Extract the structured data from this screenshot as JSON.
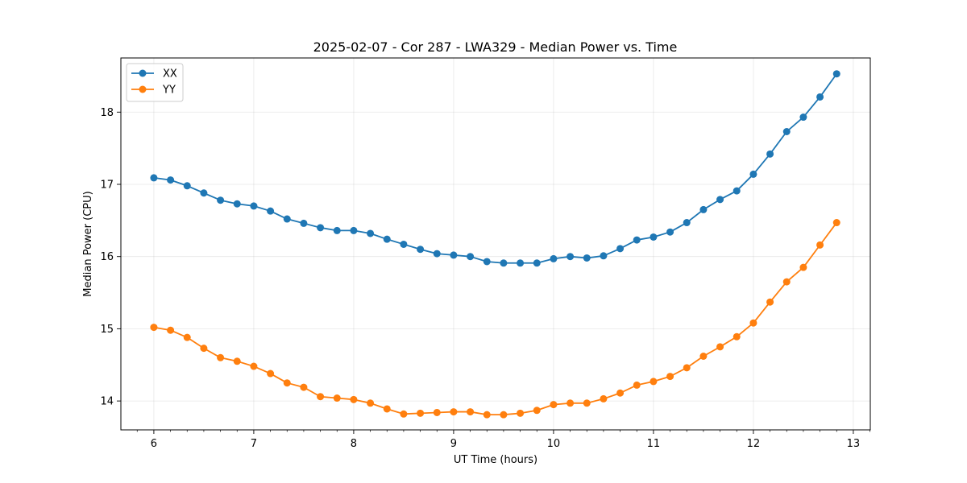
{
  "chart_data": {
    "type": "line",
    "title": "2025-02-07 - Cor 287 - LWA329 - Median Power vs. Time",
    "xlabel": "UT Time (hours)",
    "ylabel": "Median Power (CPU)",
    "xlim": [
      5.67,
      13.17
    ],
    "ylim": [
      13.6,
      18.75
    ],
    "xticks": [
      6,
      7,
      8,
      9,
      10,
      11,
      12,
      13
    ],
    "yticks": [
      14,
      15,
      16,
      17,
      18
    ],
    "grid": true,
    "legend_position": "top-left",
    "x": [
      6.0,
      6.1667,
      6.3333,
      6.5,
      6.6667,
      6.8333,
      7.0,
      7.1667,
      7.3333,
      7.5,
      7.6667,
      7.8333,
      8.0,
      8.1667,
      8.3333,
      8.5,
      8.6667,
      8.8333,
      9.0,
      9.1667,
      9.3333,
      9.5,
      9.6667,
      9.8333,
      10.0,
      10.1667,
      10.3333,
      10.5,
      10.6667,
      10.8333,
      11.0,
      11.1667,
      11.3333,
      11.5,
      11.6667,
      11.8333,
      12.0,
      12.1667,
      12.3333,
      12.5,
      12.6667,
      12.8333
    ],
    "series": [
      {
        "name": "XX",
        "color": "#1f77b4",
        "values": [
          17.09,
          17.06,
          16.98,
          16.88,
          16.78,
          16.73,
          16.7,
          16.63,
          16.52,
          16.46,
          16.4,
          16.36,
          16.36,
          16.32,
          16.24,
          16.17,
          16.1,
          16.04,
          16.02,
          16.0,
          15.93,
          15.91,
          15.91,
          15.91,
          15.97,
          16.0,
          15.98,
          16.01,
          16.11,
          16.23,
          16.27,
          16.34,
          16.47,
          16.65,
          16.79,
          16.91,
          17.14,
          17.42,
          17.73,
          17.93,
          18.21,
          18.53
        ]
      },
      {
        "name": "YY",
        "color": "#ff7f0e",
        "values": [
          15.02,
          14.98,
          14.88,
          14.73,
          14.6,
          14.55,
          14.48,
          14.38,
          14.25,
          14.19,
          14.06,
          14.04,
          14.02,
          13.97,
          13.89,
          13.82,
          13.83,
          13.84,
          13.85,
          13.85,
          13.81,
          13.81,
          13.83,
          13.87,
          13.95,
          13.97,
          13.97,
          14.03,
          14.11,
          14.22,
          14.27,
          14.34,
          14.46,
          14.62,
          14.75,
          14.89,
          15.08,
          15.37,
          15.65,
          15.85,
          16.16,
          16.47
        ]
      }
    ]
  }
}
